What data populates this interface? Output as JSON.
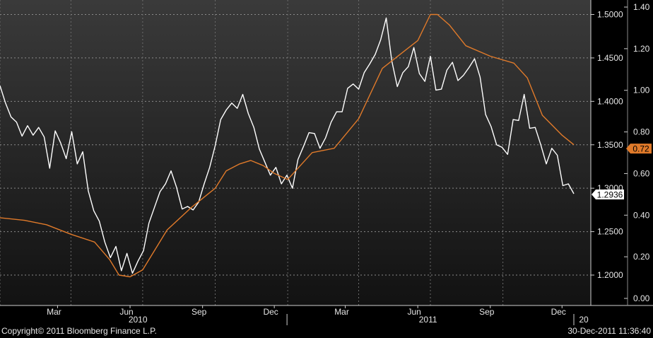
{
  "footer": {
    "copyright": "Copyright© 2011 Bloomberg Finance L.P.",
    "timestamp": "30-Dec-2011 11:36:40"
  },
  "colors": {
    "price_series": "#ffffff",
    "indicator_series": "#e07a2a",
    "background_top": "#3a3a3a",
    "background_bottom": "#121212",
    "indicator_label_bg": "#e07a2a",
    "price_label_bg": "#ffffff"
  },
  "chart_data": {
    "type": "line",
    "x_ticks": {
      "months": [
        "Mar",
        "Jun",
        "Sep",
        "Dec",
        "Mar",
        "Jun",
        "Sep",
        "Dec"
      ],
      "years": [
        "2010",
        "2011",
        "20"
      ]
    },
    "y_left": {
      "ticks": [
        "1.2000",
        "1.2500",
        "1.3000",
        "1.3500",
        "1.4000",
        "1.4500",
        "1.5000"
      ],
      "range": [
        1.17,
        1.535
      ]
    },
    "y_right": {
      "ticks": [
        "0.00",
        "0.20",
        "0.40",
        "0.60",
        "0.80",
        "1.00",
        "1.20",
        "1.40"
      ],
      "range": [
        0.0,
        1.4
      ]
    },
    "last_values": {
      "price": "1.2936",
      "indicator": "0.72"
    },
    "grid": true,
    "series": [
      {
        "values": [
          [
            "2010-01-01",
            1.418
          ],
          [
            "2010-01-08",
            1.398
          ],
          [
            "2010-01-15",
            1.382
          ],
          [
            "2010-01-22",
            1.376
          ],
          [
            "2010-01-29",
            1.36
          ],
          [
            "2010-02-05",
            1.372
          ],
          [
            "2010-02-12",
            1.361
          ],
          [
            "2010-02-19",
            1.37
          ],
          [
            "2010-02-26",
            1.359
          ],
          [
            "2010-03-05",
            1.323
          ],
          [
            "2010-03-12",
            1.366
          ],
          [
            "2010-03-19",
            1.352
          ],
          [
            "2010-03-26",
            1.334
          ],
          [
            "2010-04-02",
            1.365
          ],
          [
            "2010-04-09",
            1.328
          ],
          [
            "2010-04-16",
            1.342
          ],
          [
            "2010-04-23",
            1.297
          ],
          [
            "2010-04-30",
            1.274
          ],
          [
            "2010-05-07",
            1.262
          ],
          [
            "2010-05-14",
            1.238
          ],
          [
            "2010-05-21",
            1.22
          ],
          [
            "2010-05-28",
            1.233
          ],
          [
            "2010-06-04",
            1.205
          ],
          [
            "2010-06-11",
            1.225
          ],
          [
            "2010-06-18",
            1.202
          ],
          [
            "2010-06-25",
            1.216
          ],
          [
            "2010-07-02",
            1.228
          ],
          [
            "2010-07-09",
            1.26
          ],
          [
            "2010-07-16",
            1.278
          ],
          [
            "2010-07-23",
            1.296
          ],
          [
            "2010-07-30",
            1.305
          ],
          [
            "2010-08-06",
            1.32
          ],
          [
            "2010-08-13",
            1.301
          ],
          [
            "2010-08-20",
            1.276
          ],
          [
            "2010-08-27",
            1.279
          ],
          [
            "2010-09-03",
            1.275
          ],
          [
            "2010-09-10",
            1.284
          ],
          [
            "2010-09-17",
            1.305
          ],
          [
            "2010-09-24",
            1.324
          ],
          [
            "2010-10-01",
            1.349
          ],
          [
            "2010-10-08",
            1.379
          ],
          [
            "2010-10-15",
            1.39
          ],
          [
            "2010-10-22",
            1.398
          ],
          [
            "2010-10-29",
            1.392
          ],
          [
            "2010-11-05",
            1.408
          ],
          [
            "2010-11-12",
            1.386
          ],
          [
            "2010-11-19",
            1.37
          ],
          [
            "2010-11-26",
            1.345
          ],
          [
            "2010-12-03",
            1.33
          ],
          [
            "2010-12-10",
            1.315
          ],
          [
            "2010-12-17",
            1.324
          ],
          [
            "2010-12-24",
            1.305
          ],
          [
            "2010-12-31",
            1.315
          ],
          [
            "2011-01-07",
            1.3
          ],
          [
            "2011-01-14",
            1.333
          ],
          [
            "2011-01-21",
            1.348
          ],
          [
            "2011-01-28",
            1.364
          ],
          [
            "2011-02-04",
            1.363
          ],
          [
            "2011-02-11",
            1.346
          ],
          [
            "2011-02-18",
            1.358
          ],
          [
            "2011-02-25",
            1.376
          ],
          [
            "2011-03-04",
            1.388
          ],
          [
            "2011-03-11",
            1.388
          ],
          [
            "2011-03-18",
            1.415
          ],
          [
            "2011-03-25",
            1.42
          ],
          [
            "2011-04-01",
            1.414
          ],
          [
            "2011-04-08",
            1.433
          ],
          [
            "2011-04-15",
            1.443
          ],
          [
            "2011-04-22",
            1.454
          ],
          [
            "2011-04-29",
            1.471
          ],
          [
            "2011-05-06",
            1.496
          ],
          [
            "2011-05-13",
            1.447
          ],
          [
            "2011-05-20",
            1.417
          ],
          [
            "2011-05-27",
            1.433
          ],
          [
            "2011-06-03",
            1.44
          ],
          [
            "2011-06-10",
            1.462
          ],
          [
            "2011-06-17",
            1.432
          ],
          [
            "2011-06-24",
            1.423
          ],
          [
            "2011-07-01",
            1.452
          ],
          [
            "2011-07-08",
            1.413
          ],
          [
            "2011-07-15",
            1.414
          ],
          [
            "2011-07-22",
            1.436
          ],
          [
            "2011-07-29",
            1.445
          ],
          [
            "2011-08-05",
            1.424
          ],
          [
            "2011-08-12",
            1.43
          ],
          [
            "2011-08-19",
            1.439
          ],
          [
            "2011-08-26",
            1.449
          ],
          [
            "2011-09-02",
            1.428
          ],
          [
            "2011-09-09",
            1.385
          ],
          [
            "2011-09-16",
            1.371
          ],
          [
            "2011-09-23",
            1.35
          ],
          [
            "2011-09-30",
            1.347
          ],
          [
            "2011-10-07",
            1.339
          ],
          [
            "2011-10-14",
            1.379
          ],
          [
            "2011-10-21",
            1.378
          ],
          [
            "2011-10-28",
            1.408
          ],
          [
            "2011-11-04",
            1.369
          ],
          [
            "2011-11-11",
            1.37
          ],
          [
            "2011-11-18",
            1.35
          ],
          [
            "2011-11-25",
            1.328
          ],
          [
            "2011-12-02",
            1.346
          ],
          [
            "2011-12-09",
            1.338
          ],
          [
            "2011-12-16",
            1.303
          ],
          [
            "2011-12-23",
            1.305
          ],
          [
            "2011-12-30",
            1.2936
          ]
        ]
      },
      {
        "values": [
          [
            "2010-01-01",
            1.266
          ],
          [
            "2010-02-01",
            1.263
          ],
          [
            "2010-03-01",
            1.258
          ],
          [
            "2010-04-01",
            1.247
          ],
          [
            "2010-05-01",
            1.238
          ],
          [
            "2010-05-20",
            1.218
          ],
          [
            "2010-06-01",
            1.2
          ],
          [
            "2010-06-15",
            1.198
          ],
          [
            "2010-07-01",
            1.206
          ],
          [
            "2010-08-01",
            1.252
          ],
          [
            "2010-09-01",
            1.278
          ],
          [
            "2010-10-01",
            1.3
          ],
          [
            "2010-10-15",
            1.32
          ],
          [
            "2010-11-01",
            1.328
          ],
          [
            "2010-11-15",
            1.332
          ],
          [
            "2010-12-01",
            1.326
          ],
          [
            "2010-12-15",
            1.317
          ],
          [
            "2011-01-01",
            1.31
          ],
          [
            "2011-01-15",
            1.324
          ],
          [
            "2011-02-01",
            1.341
          ],
          [
            "2011-03-01",
            1.346
          ],
          [
            "2011-04-01",
            1.38
          ],
          [
            "2011-05-01",
            1.438
          ],
          [
            "2011-06-01",
            1.46
          ],
          [
            "2011-06-15",
            1.47
          ],
          [
            "2011-07-01",
            1.5
          ],
          [
            "2011-07-10",
            1.5
          ],
          [
            "2011-07-25",
            1.488
          ],
          [
            "2011-08-15",
            1.464
          ],
          [
            "2011-09-15",
            1.452
          ],
          [
            "2011-10-15",
            1.444
          ],
          [
            "2011-11-01",
            1.427
          ],
          [
            "2011-11-20",
            1.384
          ],
          [
            "2011-12-15",
            1.361
          ],
          [
            "2011-12-30",
            1.35
          ]
        ]
      }
    ]
  }
}
